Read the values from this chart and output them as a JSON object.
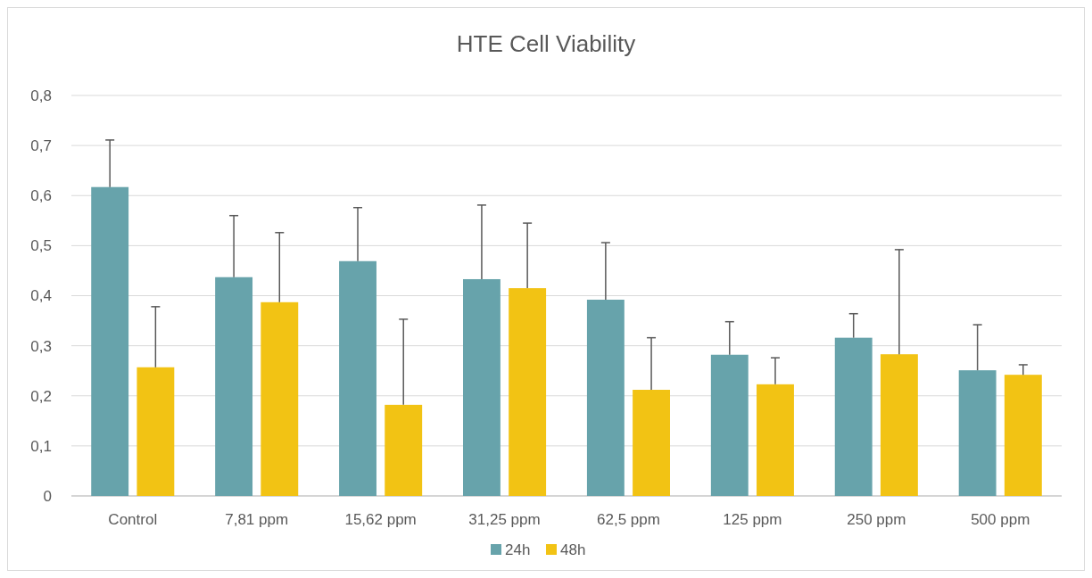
{
  "chart_data": {
    "type": "bar",
    "title": "HTE Cell Viability",
    "categories": [
      "Control",
      "7,81 ppm",
      "15,62 ppm",
      "31,25 ppm",
      "62,5 ppm",
      "125 ppm",
      "250 ppm",
      "500 ppm"
    ],
    "series": [
      {
        "name": "24h",
        "color": "#67a3ab",
        "values": [
          0.617,
          0.437,
          0.469,
          0.433,
          0.392,
          0.282,
          0.316,
          0.251
        ],
        "errors": [
          [
            0.617,
            0.711
          ],
          [
            0.437,
            0.56
          ],
          [
            0.469,
            0.576
          ],
          [
            0.433,
            0.581
          ],
          [
            0.392,
            0.506
          ],
          [
            0.282,
            0.348
          ],
          [
            0.316,
            0.364
          ],
          [
            0.251,
            0.342
          ]
        ]
      },
      {
        "name": "48h",
        "color": "#f2c314",
        "values": [
          0.257,
          0.387,
          0.182,
          0.415,
          0.212,
          0.223,
          0.283,
          0.242
        ],
        "errors": [
          [
            0.257,
            0.378
          ],
          [
            0.387,
            0.526
          ],
          [
            0.182,
            0.353
          ],
          [
            0.415,
            0.545
          ],
          [
            0.212,
            0.316
          ],
          [
            0.223,
            0.276
          ],
          [
            0.283,
            0.492
          ],
          [
            0.242,
            0.262
          ]
        ]
      }
    ],
    "ylim": [
      0,
      0.8
    ],
    "yticks": [
      {
        "value": 0,
        "label": "0"
      },
      {
        "value": 0.1,
        "label": "0,1"
      },
      {
        "value": 0.2,
        "label": "0,2"
      },
      {
        "value": 0.3,
        "label": "0,3"
      },
      {
        "value": 0.4,
        "label": "0,4"
      },
      {
        "value": 0.5,
        "label": "0,5"
      },
      {
        "value": 0.6,
        "label": "0,6"
      },
      {
        "value": 0.7,
        "label": "0,7"
      },
      {
        "value": 0.8,
        "label": "0,8"
      }
    ],
    "grid": "y",
    "legend": "bottom"
  }
}
